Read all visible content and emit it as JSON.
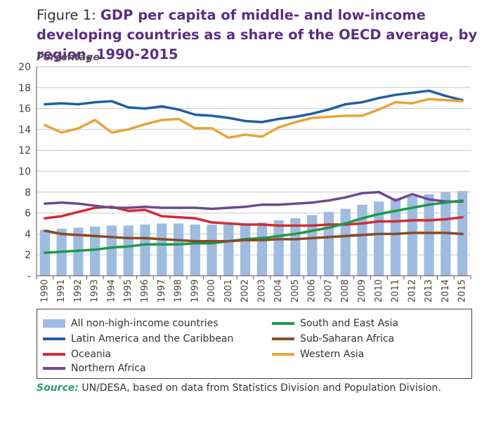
{
  "figure_label": "Figure 1:",
  "title": "GDP per capita of middle- and low-income developing countries as a share of the OECD average, by region, 1990-2015",
  "source": {
    "label": "Source:",
    "text": " UN/DESA, based on data from Statistics Division and Population Division."
  },
  "chart_data": {
    "type": "bar",
    "ylabel": "Percentage",
    "ylim": [
      0,
      20
    ],
    "yticks": [
      0,
      2,
      4,
      6,
      8,
      10,
      12,
      14,
      16,
      18,
      20
    ],
    "ytick_labels": [
      "-",
      "2",
      "4",
      "6",
      "8",
      "10",
      "12",
      "14",
      "16",
      "18",
      "20"
    ],
    "grid": true,
    "categories": [
      "1990",
      "1991",
      "1992",
      "1993",
      "1994",
      "1995",
      "1996",
      "1997",
      "1998",
      "1999",
      "2000",
      "2001",
      "2002",
      "2003",
      "2004",
      "2005",
      "2006",
      "2007",
      "2008",
      "2009",
      "2010",
      "2011",
      "2012",
      "2013",
      "2014",
      "2015"
    ],
    "bar_series": {
      "name": "All non-high-income countries",
      "color": "#9fbbe0",
      "values": [
        4.4,
        4.5,
        4.6,
        4.7,
        4.8,
        4.8,
        4.9,
        5.0,
        5.0,
        4.9,
        4.9,
        5.0,
        5.0,
        5.1,
        5.3,
        5.5,
        5.8,
        6.1,
        6.4,
        6.8,
        7.1,
        7.4,
        7.6,
        7.8,
        8.0,
        8.1
      ]
    },
    "line_series": [
      {
        "name": "Latin America and the Caribbean",
        "color": "#1f5fa5",
        "values": [
          16.4,
          16.5,
          16.4,
          16.6,
          16.7,
          16.1,
          16.0,
          16.2,
          15.9,
          15.4,
          15.3,
          15.1,
          14.8,
          14.7,
          15.0,
          15.2,
          15.5,
          15.9,
          16.4,
          16.6,
          17.0,
          17.3,
          17.5,
          17.7,
          17.2,
          16.8
        ]
      },
      {
        "name": "Oceania",
        "color": "#d12b35",
        "values": [
          5.5,
          5.7,
          6.1,
          6.5,
          6.6,
          6.2,
          6.3,
          5.7,
          5.6,
          5.5,
          5.1,
          5.0,
          4.9,
          4.9,
          4.8,
          4.8,
          4.8,
          4.9,
          4.9,
          5.0,
          5.2,
          5.2,
          5.3,
          5.3,
          5.4,
          5.6
        ]
      },
      {
        "name": "Northern Africa",
        "color": "#6b4a92",
        "values": [
          6.9,
          7.0,
          6.9,
          6.7,
          6.5,
          6.5,
          6.6,
          6.5,
          6.5,
          6.5,
          6.4,
          6.5,
          6.6,
          6.8,
          6.8,
          6.9,
          7.0,
          7.2,
          7.5,
          7.9,
          8.0,
          7.2,
          7.8,
          7.3,
          7.1,
          7.1
        ]
      },
      {
        "name": "South and East Asia",
        "color": "#1c9a47",
        "values": [
          2.2,
          2.3,
          2.4,
          2.5,
          2.7,
          2.8,
          3.0,
          3.0,
          3.0,
          3.1,
          3.1,
          3.3,
          3.5,
          3.6,
          3.8,
          4.0,
          4.3,
          4.6,
          5.0,
          5.5,
          5.9,
          6.2,
          6.5,
          6.8,
          7.0,
          7.2
        ]
      },
      {
        "name": "Sub-Saharan Africa",
        "color": "#8a4a24",
        "values": [
          4.3,
          4.0,
          3.9,
          3.8,
          3.7,
          3.6,
          3.6,
          3.5,
          3.4,
          3.3,
          3.3,
          3.3,
          3.4,
          3.4,
          3.5,
          3.5,
          3.6,
          3.7,
          3.8,
          3.9,
          4.0,
          4.0,
          4.1,
          4.1,
          4.1,
          4.0
        ]
      },
      {
        "name": "Western Asia",
        "color": "#e8a33a",
        "values": [
          14.4,
          13.7,
          14.1,
          14.9,
          13.7,
          14.0,
          14.5,
          14.9,
          15.0,
          14.1,
          14.1,
          13.2,
          13.5,
          13.3,
          14.2,
          14.7,
          15.1,
          15.2,
          15.3,
          15.3,
          15.9,
          16.6,
          16.5,
          16.9,
          16.8,
          16.7
        ]
      }
    ]
  }
}
